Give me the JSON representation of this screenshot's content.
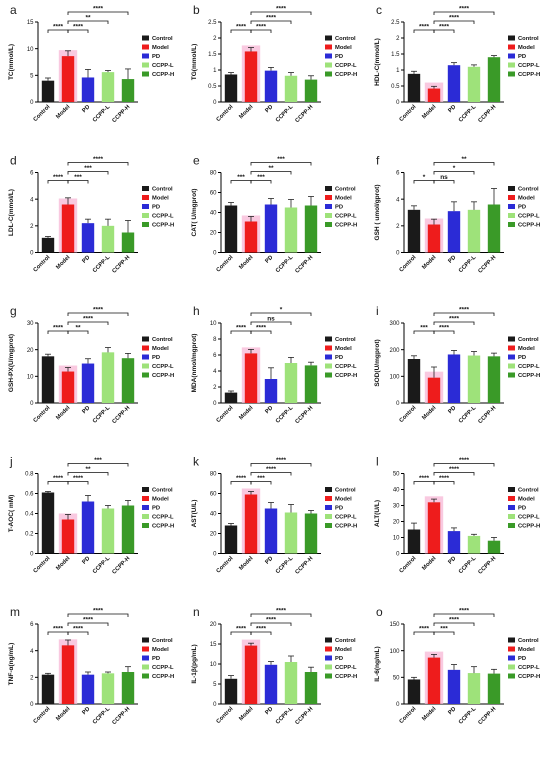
{
  "groups": [
    "Control",
    "Model",
    "PD",
    "CCPP-L",
    "CCPP-H"
  ],
  "colors": {
    "Control": "#1a1a1a",
    "Model": "#ee1c1c",
    "PD": "#2b2bd6",
    "CCPP-L": "#9ee27a",
    "CCPP-H": "#3a9a28",
    "model_glow": "#f7b7d6"
  },
  "legend_labels": [
    "Control",
    "Model",
    "PD",
    "CCPP-L",
    "CCPP-H"
  ],
  "chart_data": [
    {
      "type": "bar",
      "panel": "a",
      "ylabel": "TC(mmol/L)",
      "ylim": [
        0,
        15
      ],
      "yticks": [
        0,
        5,
        10,
        15
      ],
      "categories": [
        "Control",
        "Model",
        "PD",
        "CCPP-L",
        "CCPP-H"
      ],
      "values": [
        4.0,
        8.6,
        4.6,
        5.6,
        4.3
      ],
      "errors": [
        0.5,
        1.0,
        1.5,
        0.3,
        1.9
      ],
      "sig": [
        {
          "from": 0,
          "to": 1,
          "label": "****",
          "level": 1
        },
        {
          "from": 1,
          "to": 2,
          "label": "****",
          "level": 1
        },
        {
          "from": 1,
          "to": 3,
          "label": "**",
          "level": 2
        },
        {
          "from": 1,
          "to": 4,
          "label": "****",
          "level": 3
        }
      ]
    },
    {
      "type": "bar",
      "panel": "b",
      "ylabel": "TG(mmol/L)",
      "ylim": [
        0,
        2.5
      ],
      "yticks": [
        0.0,
        0.5,
        1.0,
        1.5,
        2.0,
        2.5
      ],
      "categories": [
        "Control",
        "Model",
        "PD",
        "CCPP-L",
        "CCPP-H"
      ],
      "values": [
        0.86,
        1.58,
        0.98,
        0.82,
        0.7
      ],
      "errors": [
        0.06,
        0.12,
        0.1,
        0.1,
        0.12
      ],
      "sig": [
        {
          "from": 0,
          "to": 1,
          "label": "****",
          "level": 1
        },
        {
          "from": 1,
          "to": 2,
          "label": "****",
          "level": 1
        },
        {
          "from": 1,
          "to": 3,
          "label": "****",
          "level": 2
        },
        {
          "from": 1,
          "to": 4,
          "label": "****",
          "level": 3
        }
      ]
    },
    {
      "type": "bar",
      "panel": "c",
      "ylabel": "HDL-C(mmol/L)",
      "ylim": [
        0,
        2.5
      ],
      "yticks": [
        0.0,
        0.5,
        1.0,
        1.5,
        2.0,
        2.5
      ],
      "categories": [
        "Control",
        "Model",
        "PD",
        "CCPP-L",
        "CCPP-H"
      ],
      "values": [
        0.88,
        0.42,
        1.15,
        1.1,
        1.4
      ],
      "errors": [
        0.08,
        0.07,
        0.08,
        0.06,
        0.05
      ],
      "sig": [
        {
          "from": 0,
          "to": 1,
          "label": "****",
          "level": 1
        },
        {
          "from": 1,
          "to": 2,
          "label": "****",
          "level": 1
        },
        {
          "from": 1,
          "to": 3,
          "label": "****",
          "level": 2
        },
        {
          "from": 1,
          "to": 4,
          "label": "****",
          "level": 3
        }
      ]
    },
    {
      "type": "bar",
      "panel": "d",
      "ylabel": "LDL-C(mmol/L)",
      "ylim": [
        0,
        6
      ],
      "yticks": [
        0,
        2,
        4,
        6
      ],
      "categories": [
        "Control",
        "Model",
        "PD",
        "CCPP-L",
        "CCPP-H"
      ],
      "values": [
        1.1,
        3.6,
        2.2,
        2.0,
        1.5
      ],
      "errors": [
        0.1,
        0.5,
        0.3,
        0.5,
        0.9
      ],
      "sig": [
        {
          "from": 0,
          "to": 1,
          "label": "****",
          "level": 1
        },
        {
          "from": 1,
          "to": 2,
          "label": "***",
          "level": 1
        },
        {
          "from": 1,
          "to": 3,
          "label": "***",
          "level": 2
        },
        {
          "from": 1,
          "to": 4,
          "label": "****",
          "level": 3
        }
      ]
    },
    {
      "type": "bar",
      "panel": "e",
      "ylabel": "CAT( U/mgprot)",
      "ylim": [
        0,
        80
      ],
      "yticks": [
        0,
        20,
        40,
        60,
        80
      ],
      "categories": [
        "Control",
        "Model",
        "PD",
        "CCPP-L",
        "CCPP-H"
      ],
      "values": [
        47,
        31,
        48,
        45,
        47
      ],
      "errors": [
        3,
        5,
        6,
        8,
        9
      ],
      "sig": [
        {
          "from": 0,
          "to": 1,
          "label": "***",
          "level": 1
        },
        {
          "from": 1,
          "to": 2,
          "label": "***",
          "level": 1
        },
        {
          "from": 1,
          "to": 3,
          "label": "**",
          "level": 2
        },
        {
          "from": 1,
          "to": 4,
          "label": "***",
          "level": 3
        }
      ]
    },
    {
      "type": "bar",
      "panel": "f",
      "ylabel": "GSH ( umol/gprot)",
      "ylim": [
        0,
        6
      ],
      "yticks": [
        0,
        2,
        4,
        6
      ],
      "categories": [
        "Control",
        "Model",
        "PD",
        "CCPP-L",
        "CCPP-H"
      ],
      "values": [
        3.2,
        2.1,
        3.1,
        3.2,
        3.6
      ],
      "errors": [
        0.3,
        0.4,
        0.7,
        0.6,
        1.2
      ],
      "sig": [
        {
          "from": 0,
          "to": 1,
          "label": "*",
          "level": 1
        },
        {
          "from": 1,
          "to": 2,
          "label": "ns",
          "level": 1
        },
        {
          "from": 1,
          "to": 3,
          "label": "*",
          "level": 2
        },
        {
          "from": 1,
          "to": 4,
          "label": "**",
          "level": 3
        }
      ]
    },
    {
      "type": "bar",
      "panel": "g",
      "ylabel": "GSH-PX(U/mgprot)",
      "ylim": [
        0,
        30
      ],
      "yticks": [
        0,
        10,
        20,
        30
      ],
      "categories": [
        "Control",
        "Model",
        "PD",
        "CCPP-L",
        "CCPP-H"
      ],
      "values": [
        17.5,
        11.8,
        14.8,
        19.0,
        16.8
      ],
      "errors": [
        0.8,
        1.5,
        1.8,
        1.8,
        1.8
      ],
      "sig": [
        {
          "from": 0,
          "to": 1,
          "label": "****",
          "level": 1
        },
        {
          "from": 1,
          "to": 2,
          "label": "**",
          "level": 1
        },
        {
          "from": 1,
          "to": 3,
          "label": "****",
          "level": 2
        },
        {
          "from": 1,
          "to": 4,
          "label": "****",
          "level": 3
        }
      ]
    },
    {
      "type": "bar",
      "panel": "h",
      "ylabel": "MDA(nmol/mgprot)",
      "ylim": [
        0,
        10
      ],
      "yticks": [
        0,
        2,
        4,
        6,
        8,
        10
      ],
      "categories": [
        "Control",
        "Model",
        "PD",
        "CCPP-L",
        "CCPP-H"
      ],
      "values": [
        1.3,
        6.2,
        3.0,
        5.0,
        4.7
      ],
      "errors": [
        0.2,
        0.5,
        1.4,
        0.7,
        0.4
      ],
      "sig": [
        {
          "from": 0,
          "to": 1,
          "label": "****",
          "level": 1
        },
        {
          "from": 1,
          "to": 2,
          "label": "****",
          "level": 1
        },
        {
          "from": 1,
          "to": 3,
          "label": "ns",
          "level": 2
        },
        {
          "from": 1,
          "to": 4,
          "label": "*",
          "level": 3
        }
      ]
    },
    {
      "type": "bar",
      "panel": "i",
      "ylabel": "SOD(U/mgprot)",
      "ylim": [
        0,
        300
      ],
      "yticks": [
        0,
        100,
        200,
        300
      ],
      "categories": [
        "Control",
        "Model",
        "PD",
        "CCPP-L",
        "CCPP-H"
      ],
      "values": [
        165,
        95,
        182,
        178,
        175
      ],
      "errors": [
        12,
        40,
        15,
        15,
        12
      ],
      "sig": [
        {
          "from": 0,
          "to": 1,
          "label": "***",
          "level": 1
        },
        {
          "from": 1,
          "to": 2,
          "label": "****",
          "level": 1
        },
        {
          "from": 1,
          "to": 3,
          "label": "****",
          "level": 2
        },
        {
          "from": 1,
          "to": 4,
          "label": "****",
          "level": 3
        }
      ]
    },
    {
      "type": "bar",
      "panel": "j",
      "ylabel": "T-AOC( mM)",
      "ylim": [
        0,
        0.8
      ],
      "yticks": [
        0.0,
        0.2,
        0.4,
        0.6,
        0.8
      ],
      "categories": [
        "Control",
        "Model",
        "PD",
        "CCPP-L",
        "CCPP-H"
      ],
      "values": [
        0.61,
        0.34,
        0.52,
        0.45,
        0.48
      ],
      "errors": [
        0.01,
        0.05,
        0.06,
        0.03,
        0.05
      ],
      "sig": [
        {
          "from": 0,
          "to": 1,
          "label": "****",
          "level": 1
        },
        {
          "from": 1,
          "to": 2,
          "label": "****",
          "level": 1
        },
        {
          "from": 1,
          "to": 3,
          "label": "**",
          "level": 2
        },
        {
          "from": 1,
          "to": 4,
          "label": "***",
          "level": 3
        }
      ]
    },
    {
      "type": "bar",
      "panel": "k",
      "ylabel": "AST(U/L)",
      "ylim": [
        0,
        80
      ],
      "yticks": [
        0,
        20,
        40,
        60,
        80
      ],
      "categories": [
        "Control",
        "Model",
        "PD",
        "CCPP-L",
        "CCPP-H"
      ],
      "values": [
        28,
        59,
        45,
        41,
        40
      ],
      "errors": [
        2,
        3,
        6,
        8,
        3
      ],
      "sig": [
        {
          "from": 0,
          "to": 1,
          "label": "****",
          "level": 1
        },
        {
          "from": 1,
          "to": 2,
          "label": "***",
          "level": 1
        },
        {
          "from": 1,
          "to": 3,
          "label": "****",
          "level": 2
        },
        {
          "from": 1,
          "to": 4,
          "label": "****",
          "level": 3
        }
      ]
    },
    {
      "type": "bar",
      "panel": "l",
      "ylabel": "ALT(U/L)",
      "ylim": [
        0,
        50
      ],
      "yticks": [
        0,
        10,
        20,
        30,
        40,
        50
      ],
      "categories": [
        "Control",
        "Model",
        "PD",
        "CCPP-L",
        "CCPP-H"
      ],
      "values": [
        15,
        32,
        14,
        11,
        8
      ],
      "errors": [
        4,
        2,
        2,
        1,
        2
      ],
      "sig": [
        {
          "from": 0,
          "to": 1,
          "label": "****",
          "level": 1
        },
        {
          "from": 1,
          "to": 2,
          "label": "****",
          "level": 1
        },
        {
          "from": 1,
          "to": 3,
          "label": "****",
          "level": 2
        },
        {
          "from": 1,
          "to": 4,
          "label": "****",
          "level": 3
        }
      ]
    },
    {
      "type": "bar",
      "panel": "m",
      "ylabel": "TNF-α(ng/mL)",
      "ylim": [
        0,
        6
      ],
      "yticks": [
        0,
        2,
        4,
        6
      ],
      "categories": [
        "Control",
        "Model",
        "PD",
        "CCPP-L",
        "CCPP-H"
      ],
      "values": [
        2.2,
        4.4,
        2.2,
        2.3,
        2.4
      ],
      "errors": [
        0.1,
        0.4,
        0.2,
        0.1,
        0.4
      ],
      "sig": [
        {
          "from": 0,
          "to": 1,
          "label": "****",
          "level": 1
        },
        {
          "from": 1,
          "to": 2,
          "label": "****",
          "level": 1
        },
        {
          "from": 1,
          "to": 3,
          "label": "****",
          "level": 2
        },
        {
          "from": 1,
          "to": 4,
          "label": "****",
          "level": 3
        }
      ]
    },
    {
      "type": "bar",
      "panel": "n",
      "ylabel": "IL-1β(pg/mL)",
      "ylim": [
        0,
        20
      ],
      "yticks": [
        0,
        5,
        10,
        15,
        20
      ],
      "categories": [
        "Control",
        "Model",
        "PD",
        "CCPP-L",
        "CCPP-H"
      ],
      "values": [
        6.3,
        14.6,
        9.8,
        10.5,
        8.0
      ],
      "errors": [
        0.8,
        0.6,
        0.8,
        1.5,
        1.2
      ],
      "sig": [
        {
          "from": 0,
          "to": 1,
          "label": "****",
          "level": 1
        },
        {
          "from": 1,
          "to": 2,
          "label": "****",
          "level": 1
        },
        {
          "from": 1,
          "to": 3,
          "label": "****",
          "level": 2
        },
        {
          "from": 1,
          "to": 4,
          "label": "****",
          "level": 3
        }
      ]
    },
    {
      "type": "bar",
      "panel": "o",
      "ylabel": "IL-6(ng/mL)",
      "ylim": [
        0,
        150
      ],
      "yticks": [
        0,
        50,
        100,
        150
      ],
      "categories": [
        "Control",
        "Model",
        "PD",
        "CCPP-L",
        "CCPP-H"
      ],
      "values": [
        46,
        87,
        64,
        58,
        57
      ],
      "errors": [
        4,
        6,
        10,
        12,
        8
      ],
      "sig": [
        {
          "from": 0,
          "to": 1,
          "label": "****",
          "level": 1
        },
        {
          "from": 1,
          "to": 2,
          "label": "***",
          "level": 1
        },
        {
          "from": 1,
          "to": 3,
          "label": "****",
          "level": 2
        },
        {
          "from": 1,
          "to": 4,
          "label": "****",
          "level": 3
        }
      ]
    }
  ]
}
